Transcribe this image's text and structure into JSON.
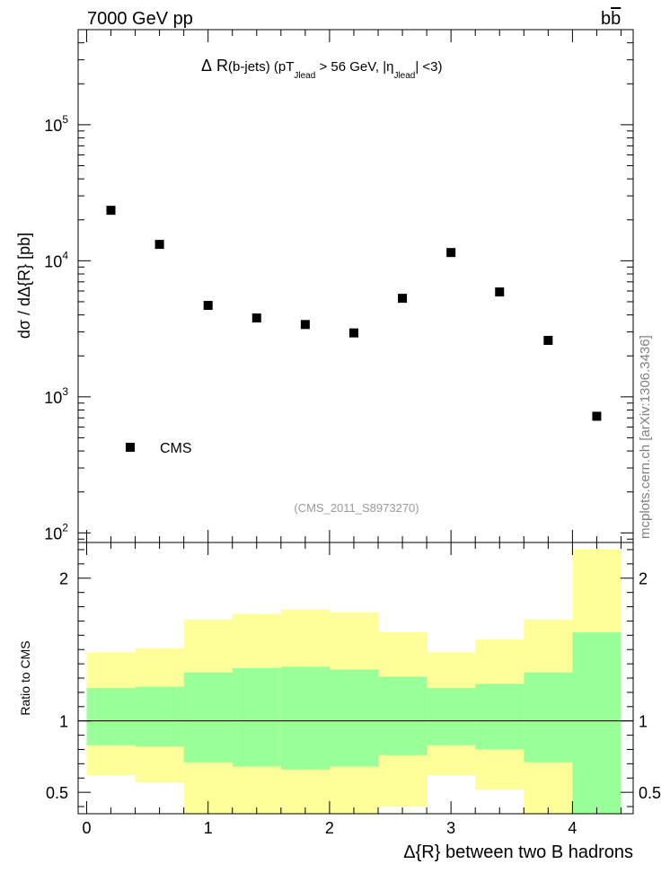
{
  "header": {
    "energy_label": "7000 GeV pp",
    "process_label": "b",
    "process_label_bar": "b"
  },
  "side_label": "mcplots.cern.ch [arXiv:1306.3436]",
  "chart_data": [
    {
      "type": "scatter",
      "title_parts": {
        "delta": "Δ",
        "r": "R",
        "sub": "(b-jets) (pT",
        "jlead1": "Jlead",
        "mid": " >  56 GeV, |η",
        "jlead2": "Jlead",
        "end": "| <3)"
      },
      "ylabel": "dσ / dΔ{R} [pb]",
      "yscale": "log",
      "ylim": [
        85,
        500000
      ],
      "xlim": [
        -0.07,
        4.5
      ],
      "yticks": [
        {
          "value": 100,
          "base": "10",
          "exp": "2"
        },
        {
          "value": 1000,
          "base": "10",
          "exp": "3"
        },
        {
          "value": 10000,
          "base": "10",
          "exp": "4"
        },
        {
          "value": 100000,
          "base": "10",
          "exp": "5"
        }
      ],
      "series": [
        {
          "name": "CMS",
          "marker": "square",
          "color": "#000000",
          "x": [
            0.2,
            0.6,
            1.0,
            1.4,
            1.8,
            2.2,
            2.6,
            3.0,
            3.4,
            3.8,
            4.2
          ],
          "y": [
            23500,
            13200,
            4700,
            3800,
            3400,
            2950,
            5300,
            11500,
            5900,
            2600,
            720
          ]
        }
      ],
      "watermark": "(CMS_2011_S8973270)"
    },
    {
      "type": "area",
      "ylabel": "Ratio to CMS",
      "xlabel": "Δ{R} between two B hadrons",
      "ylim": [
        0.35,
        2.25
      ],
      "xlim": [
        -0.07,
        4.5
      ],
      "xticks": [
        "0",
        "1",
        "2",
        "3",
        "4"
      ],
      "yticks": [
        "0.5",
        "1",
        "2"
      ],
      "reference_line": 1,
      "bins": [
        0.0,
        0.4,
        0.8,
        1.2,
        1.6,
        2.0,
        2.4,
        2.8,
        3.2,
        3.6,
        4.0,
        4.4
      ],
      "stat_band": {
        "color": "#99ff99",
        "lo": [
          0.83,
          0.82,
          0.71,
          0.68,
          0.66,
          0.68,
          0.76,
          0.83,
          0.8,
          0.71,
          0.35
        ],
        "hi": [
          1.23,
          1.24,
          1.34,
          1.37,
          1.38,
          1.36,
          1.31,
          1.23,
          1.26,
          1.34,
          1.62
        ]
      },
      "total_band": {
        "color": "#ffff99",
        "lo": [
          0.62,
          0.57,
          0.35,
          0.35,
          0.35,
          0.35,
          0.4,
          0.62,
          0.52,
          0.35,
          0.35
        ],
        "hi": [
          1.48,
          1.51,
          1.71,
          1.75,
          1.78,
          1.76,
          1.62,
          1.48,
          1.57,
          1.71,
          2.2
        ]
      }
    }
  ]
}
